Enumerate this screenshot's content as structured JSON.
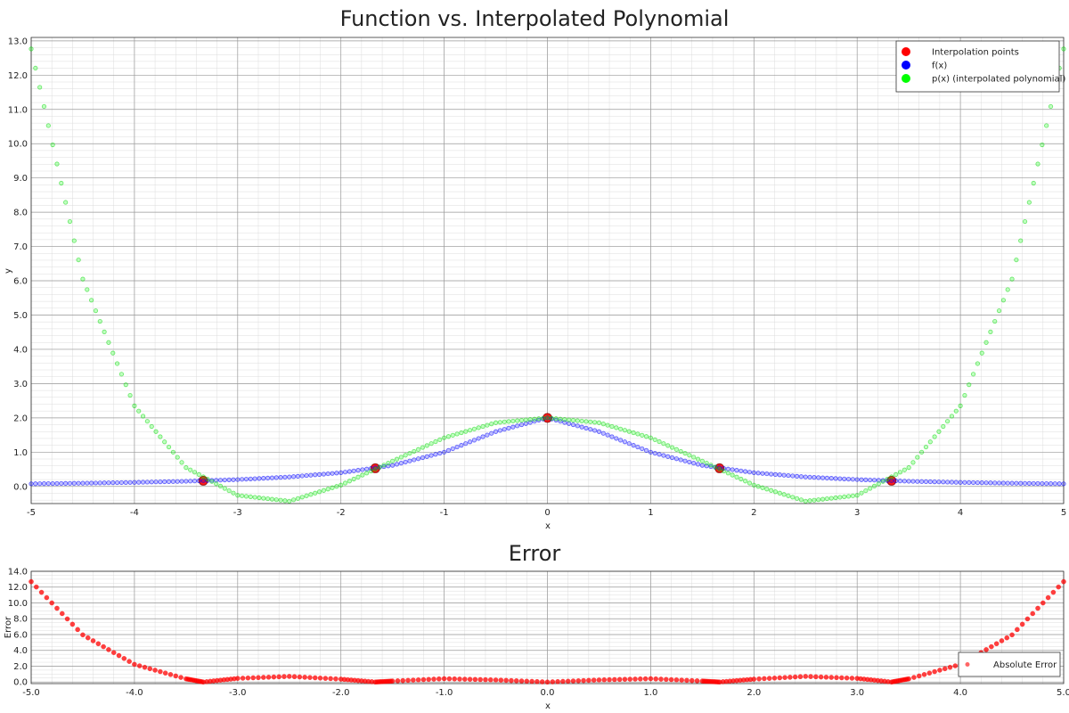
{
  "chart_data": [
    {
      "type": "scatter",
      "title": "Function vs. Interpolated Polynomial",
      "xlabel": "x",
      "ylabel": "y",
      "xlim": [
        -5,
        5
      ],
      "ylim": [
        -0.5,
        13.1
      ],
      "grid": true,
      "legend_position": "top-right",
      "x_tick_labels": [
        "-5",
        "-4",
        "-3",
        "-2",
        "-1",
        "0",
        "1",
        "2",
        "3",
        "4",
        "5"
      ],
      "y_tick_labels": [
        "0.0",
        "1.0",
        "2.0",
        "3.0",
        "4.0",
        "5.0",
        "6.0",
        "7.0",
        "8.0",
        "9.0",
        "10.0",
        "11.0",
        "12.0",
        "13.0"
      ],
      "series": [
        {
          "name": "Interpolation points",
          "color": "#ff0000",
          "x": [
            -3.333,
            -1.667,
            0.0,
            1.667,
            3.333
          ],
          "y": [
            0.165,
            0.529,
            2.0,
            0.529,
            0.165
          ]
        },
        {
          "name": "f(x)",
          "color": "#0000ff",
          "x": [
            -5.0,
            -4.5,
            -4.0,
            -3.5,
            -3.0,
            -2.5,
            -2.0,
            -1.5,
            -1.0,
            -0.5,
            0.0,
            0.5,
            1.0,
            1.5,
            2.0,
            2.5,
            3.0,
            3.5,
            4.0,
            4.5,
            5.0
          ],
          "y": [
            0.077,
            0.094,
            0.118,
            0.151,
            0.2,
            0.276,
            0.4,
            0.615,
            1.0,
            1.6,
            2.0,
            1.6,
            1.0,
            0.615,
            0.4,
            0.276,
            0.2,
            0.151,
            0.118,
            0.094,
            0.077
          ]
        },
        {
          "name": "p(x) (interpolated polynomial)",
          "color": "#00ff00",
          "x": [
            -5.0,
            -4.5,
            -4.0,
            -3.5,
            -3.0,
            -2.5,
            -2.0,
            -1.5,
            -1.0,
            -0.5,
            0.0,
            0.5,
            1.0,
            1.5,
            2.0,
            2.5,
            3.0,
            3.5,
            4.0,
            4.5,
            5.0
          ],
          "y": [
            12.765,
            6.05,
            2.35,
            0.55,
            -0.26,
            -0.43,
            0.04,
            0.74,
            1.42,
            1.86,
            2.0,
            1.86,
            1.42,
            0.74,
            0.04,
            -0.43,
            -0.26,
            0.55,
            2.35,
            6.05,
            12.765
          ]
        }
      ]
    },
    {
      "type": "scatter",
      "title": "Error",
      "xlabel": "x",
      "ylabel": "Error",
      "xlim": [
        -5,
        5
      ],
      "ylim": [
        -0.2,
        14.0
      ],
      "grid": true,
      "legend_position": "bottom-right",
      "x_tick_labels": [
        "-5.0",
        "-4.0",
        "-3.0",
        "-2.0",
        "-1.0",
        "0.0",
        "1.0",
        "2.0",
        "3.0",
        "4.0",
        "5.0"
      ],
      "y_tick_labels": [
        "0.0",
        "2.0",
        "4.0",
        "6.0",
        "8.0",
        "10.0",
        "12.0",
        "14.0"
      ],
      "series": [
        {
          "name": "Absolute Error",
          "color": "#ff0000",
          "x": [
            -5.0,
            -4.5,
            -4.0,
            -3.5,
            -3.333,
            -3.0,
            -2.5,
            -2.0,
            -1.667,
            -1.5,
            -1.0,
            -0.5,
            0.0,
            0.5,
            1.0,
            1.5,
            1.667,
            2.0,
            2.5,
            3.0,
            3.333,
            3.5,
            4.0,
            4.5,
            5.0
          ],
          "y": [
            12.69,
            5.96,
            2.23,
            0.4,
            0.0,
            0.46,
            0.71,
            0.36,
            0.0,
            0.12,
            0.42,
            0.26,
            0.0,
            0.26,
            0.42,
            0.12,
            0.0,
            0.36,
            0.71,
            0.46,
            0.0,
            0.4,
            2.23,
            5.96,
            12.69
          ]
        }
      ]
    }
  ]
}
